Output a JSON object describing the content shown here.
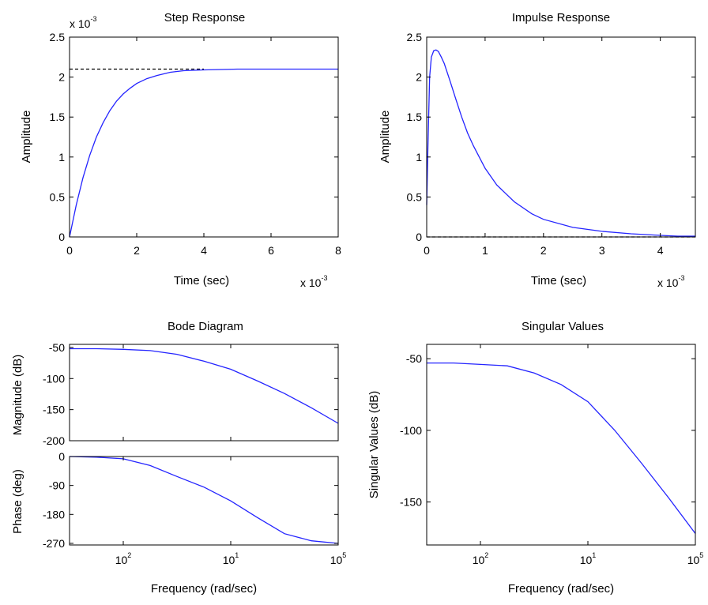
{
  "colors": {
    "line": "#2424ff",
    "reference": "#000000",
    "axis": "#000000",
    "background": "#ffffff"
  },
  "chart_data": [
    {
      "type": "line",
      "title": "Step Response",
      "xlabel": "Time (sec)",
      "ylabel": "Amplitude",
      "x_scale_label": "x 10",
      "x_scale_exp": "-3",
      "y_scale_label": "x 10",
      "y_scale_exp": "-3",
      "xlim": [
        0,
        8
      ],
      "ylim": [
        0,
        2.5
      ],
      "xticks": [
        0,
        2,
        4,
        6,
        8
      ],
      "xticklabels": [
        "0",
        "2",
        "4",
        "6",
        "8"
      ],
      "yticks": [
        0,
        0.5,
        1,
        1.5,
        2,
        2.5
      ],
      "yticklabels": [
        "0",
        "0.5",
        "1",
        "1.5",
        "2",
        "2.5"
      ],
      "reference_line": {
        "y": 2.1,
        "x_end": 4,
        "style": "dashed"
      },
      "series": [
        {
          "x": [
            0,
            0.2,
            0.4,
            0.6,
            0.8,
            1.0,
            1.2,
            1.4,
            1.6,
            1.8,
            2.0,
            2.3,
            2.6,
            3.0,
            3.4,
            4.0,
            5.0,
            6.0,
            8.0
          ],
          "y": [
            0,
            0.4,
            0.74,
            1.02,
            1.25,
            1.43,
            1.58,
            1.7,
            1.79,
            1.86,
            1.92,
            1.98,
            2.02,
            2.06,
            2.08,
            2.09,
            2.1,
            2.1,
            2.1
          ]
        }
      ]
    },
    {
      "type": "line",
      "title": "Impulse Response",
      "xlabel": "Time (sec)",
      "ylabel": "Amplitude",
      "x_scale_label": "x 10",
      "x_scale_exp": "-3",
      "xlim": [
        0,
        4.6
      ],
      "ylim": [
        0,
        2.5
      ],
      "xticks": [
        0,
        1,
        2,
        3,
        4
      ],
      "xticklabels": [
        "0",
        "1",
        "2",
        "3",
        "4"
      ],
      "yticks": [
        0,
        0.5,
        1,
        1.5,
        2,
        2.5
      ],
      "yticklabels": [
        "0",
        "0.5",
        "1",
        "1.5",
        "2",
        "2.5"
      ],
      "reference_line": {
        "y": 0,
        "x_end": 4.6,
        "style": "dashed"
      },
      "series": [
        {
          "x": [
            0,
            0.02,
            0.05,
            0.08,
            0.12,
            0.16,
            0.2,
            0.25,
            0.3,
            0.4,
            0.5,
            0.6,
            0.7,
            0.8,
            1.0,
            1.2,
            1.5,
            1.8,
            2.0,
            2.5,
            3.0,
            3.5,
            4.0,
            4.3,
            4.6
          ],
          "y": [
            0.4,
            1.1,
            2.0,
            2.25,
            2.33,
            2.34,
            2.32,
            2.25,
            2.17,
            1.95,
            1.72,
            1.5,
            1.3,
            1.14,
            0.86,
            0.65,
            0.44,
            0.29,
            0.22,
            0.12,
            0.07,
            0.04,
            0.02,
            0.01,
            0.01
          ]
        }
      ]
    },
    {
      "type": "line",
      "title": "Bode Diagram",
      "xlabel": "Frequency  (rad/sec)",
      "xscale": "log",
      "xtick_base": "10",
      "xtick_exps": [
        "2",
        "1",
        "5"
      ],
      "panels": [
        {
          "ylabel": "Magnitude (dB)",
          "ylim": [
            -200,
            -45
          ],
          "yticks": [
            -50,
            -100,
            -150,
            -200
          ],
          "yticklabels": [
            "-50",
            "-100",
            "-150",
            "-200"
          ],
          "series": [
            {
              "x": [
                0,
                0.1,
                0.2,
                0.3,
                0.4,
                0.5,
                0.6,
                0.7,
                0.8,
                0.9,
                1.0
              ],
              "y": [
                -52,
                -52,
                -53,
                -55,
                -61,
                -72,
                -85,
                -104,
                -124,
                -147,
                -172
              ]
            }
          ]
        },
        {
          "ylabel": "Phase (deg)",
          "ylim": [
            -275,
            0
          ],
          "yticks": [
            0,
            -90,
            -180,
            -270
          ],
          "yticklabels": [
            "0",
            "-90",
            "-180",
            "-270"
          ],
          "series": [
            {
              "x": [
                0,
                0.1,
                0.2,
                0.3,
                0.4,
                0.5,
                0.6,
                0.7,
                0.8,
                0.9,
                1.0
              ],
              "y": [
                0,
                -2,
                -7,
                -28,
                -62,
                -95,
                -138,
                -190,
                -240,
                -262,
                -270
              ]
            }
          ]
        }
      ]
    },
    {
      "type": "line",
      "title": "Singular Values",
      "xlabel": "Frequency (rad/sec)",
      "ylabel": "Singular Values (dB)",
      "xscale": "log",
      "xtick_base": "10",
      "xtick_exps": [
        "2",
        "1",
        "5"
      ],
      "ylim": [
        -180,
        -40
      ],
      "yticks": [
        -50,
        -100,
        -150
      ],
      "yticklabels": [
        "-50",
        "-100",
        "-150"
      ],
      "series": [
        {
          "x": [
            0,
            0.1,
            0.2,
            0.3,
            0.4,
            0.5,
            0.6,
            0.7,
            0.8,
            0.9,
            1.0
          ],
          "y": [
            -53,
            -53,
            -54,
            -55,
            -60,
            -68,
            -80,
            -100,
            -123,
            -147,
            -172
          ]
        }
      ]
    }
  ]
}
